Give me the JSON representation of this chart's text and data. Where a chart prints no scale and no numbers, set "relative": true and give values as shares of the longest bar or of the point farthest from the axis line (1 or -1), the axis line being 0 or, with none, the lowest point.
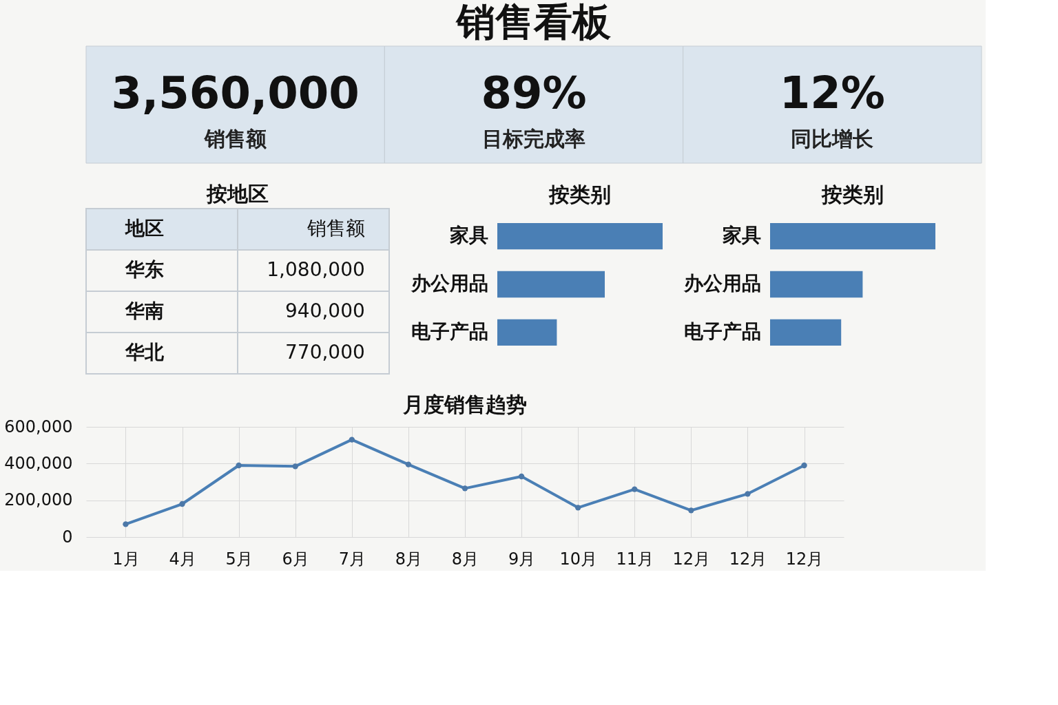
{
  "chart_data": [
    {
      "type": "other",
      "title": "销售看板",
      "categories": [
        "销售额",
        "目标完成率",
        "同比增长"
      ],
      "values": [
        3560000,
        89,
        12
      ],
      "value_labels": [
        "3,560,000",
        "89%",
        "12%"
      ]
    },
    {
      "type": "other",
      "title": "按地区",
      "xlabel": "地区",
      "ylabel": "销售额",
      "categories": [
        "华东",
        "华南",
        "华北"
      ],
      "values": [
        1080000,
        940000,
        770000
      ],
      "value_labels": [
        "1,080,000",
        "940,000",
        "770,000"
      ]
    },
    {
      "type": "bar",
      "title": "按类别",
      "orientation": "horizontal",
      "relative": true,
      "categories": [
        "家具",
        "办公用品",
        "电子产品"
      ],
      "values": [
        1,
        0.65,
        0.36
      ],
      "color": "#4a7fb5"
    },
    {
      "type": "bar",
      "title": "按类别",
      "orientation": "horizontal",
      "relative": true,
      "categories": [
        "家具",
        "办公用品",
        "电子产品"
      ],
      "values": [
        1,
        0.56,
        0.43
      ],
      "color": "#4a7fb5"
    },
    {
      "type": "line",
      "title": "月度销售趋势",
      "categories": [
        "1月",
        "4月",
        "5月",
        "6月",
        "7月",
        "8月",
        "8月",
        "9月",
        "10月",
        "11月",
        "12月",
        "12月",
        "12月"
      ],
      "values": [
        70000,
        180000,
        390000,
        385000,
        530000,
        395000,
        265000,
        330000,
        160000,
        260000,
        145000,
        235000,
        390000
      ],
      "color": "#4a7fb5",
      "ylim": [
        0,
        600000
      ],
      "yticks": [
        0,
        {
          "value": 200000,
          "label": "200,000"
        },
        {
          "value": 400000,
          "label": "400,000"
        },
        {
          "value": 600000,
          "label": "600,000"
        }
      ],
      "grid": true,
      "marker": "circle",
      "line_style": "solid"
    }
  ]
}
